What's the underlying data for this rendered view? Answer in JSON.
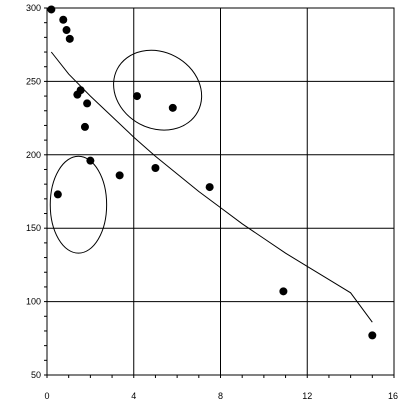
{
  "chart_data": {
    "type": "scatter",
    "title_fragment": "",
    "xlabel": "",
    "ylabel": "",
    "xlim": [
      0,
      16
    ],
    "ylim": [
      50,
      300
    ],
    "x_ticks": [
      0,
      4,
      8,
      12,
      16
    ],
    "x_tick_labels": [
      "0",
      "4",
      "8",
      "12",
      "16"
    ],
    "y_ticks": [
      50,
      100,
      150,
      200,
      250,
      300
    ],
    "y_tick_labels": [
      "50",
      "100",
      "150",
      "200",
      "250",
      "300"
    ],
    "grid": true,
    "points": [
      {
        "x": 0.2,
        "y": 299
      },
      {
        "x": 0.75,
        "y": 292
      },
      {
        "x": 0.9,
        "y": 285
      },
      {
        "x": 1.05,
        "y": 279
      },
      {
        "x": 1.4,
        "y": 241
      },
      {
        "x": 1.55,
        "y": 244
      },
      {
        "x": 1.75,
        "y": 219
      },
      {
        "x": 1.85,
        "y": 235
      },
      {
        "x": 2.0,
        "y": 196
      },
      {
        "x": 0.5,
        "y": 173
      },
      {
        "x": 3.35,
        "y": 186
      },
      {
        "x": 4.15,
        "y": 240
      },
      {
        "x": 5.8,
        "y": 232
      },
      {
        "x": 5.0,
        "y": 191
      },
      {
        "x": 7.5,
        "y": 178
      },
      {
        "x": 10.9,
        "y": 107
      },
      {
        "x": 15.0,
        "y": 77
      }
    ],
    "trend_curve": [
      [
        0.2,
        270
      ],
      [
        1,
        255
      ],
      [
        2,
        240
      ],
      [
        3,
        226
      ],
      [
        4,
        212
      ],
      [
        5,
        199
      ],
      [
        6,
        187
      ],
      [
        7,
        175
      ],
      [
        8,
        164
      ],
      [
        9,
        153
      ],
      [
        10,
        143
      ],
      [
        11,
        133
      ],
      [
        12,
        124
      ],
      [
        13,
        115
      ],
      [
        14,
        106
      ],
      [
        15,
        86
      ]
    ],
    "highlight_ellipses": [
      {
        "cx": 1.45,
        "cy": 166,
        "rx": 1.3,
        "ry": 33,
        "rotation": 0
      },
      {
        "cx": 5.1,
        "cy": 244,
        "rx": 2.1,
        "ry": 26,
        "rotation": 28
      }
    ],
    "colors": {
      "points": "#000000",
      "grid": "#000000",
      "curve": "#000000",
      "ellipses": "#000000",
      "background": "#ffffff"
    }
  }
}
